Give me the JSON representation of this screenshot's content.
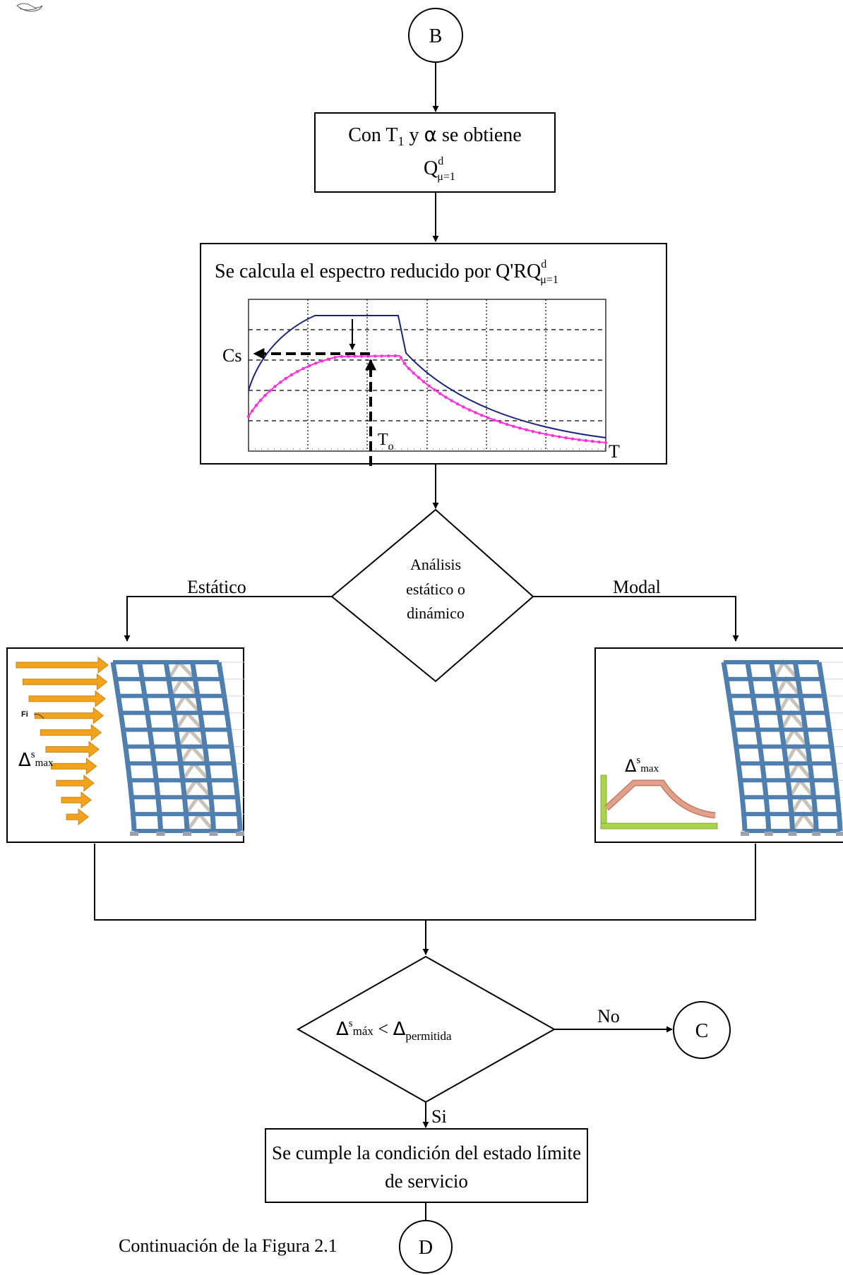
{
  "connectors": {
    "B": "B",
    "C": "C",
    "D": "D"
  },
  "step1": {
    "line1_prefix": "Con T",
    "line1_sub": "1",
    "line1_mid": " y ",
    "line1_alpha": "α",
    "line1_suffix": " se obtiene",
    "q_main": "Q",
    "q_sup": "d",
    "q_sub": "μ=1"
  },
  "step2": {
    "title": "Se calcula el espectro reducido por ",
    "q_prefix": "Q'RQ",
    "q_sup": "d",
    "q_sub": "μ=1"
  },
  "spectrum": {
    "cs_label": "Cs",
    "t0_main": "T",
    "t0_sub": "o",
    "t_label": "T",
    "colors": {
      "elastic": "#1a237e",
      "reduced": "#ff2fdc"
    }
  },
  "decision1": {
    "line1": "Análisis",
    "line2": "estático o",
    "line3": "dinámico",
    "left_label": "Estático",
    "right_label": "Modal"
  },
  "static_panel": {
    "force_label": "Fi",
    "delta_main": "Δ",
    "delta_sup": "s",
    "delta_sub": "max"
  },
  "modal_panel": {
    "delta_main": "Δ",
    "delta_sup": "s",
    "delta_sub": "max"
  },
  "decision2": {
    "delta_main": "Δ",
    "delta_sup": "s",
    "delta_sub": "máx",
    "lt": " < ",
    "perm_main": "Δ",
    "perm_sub": "permitida",
    "no_label": "No",
    "si_label": "Si"
  },
  "final_box": {
    "line1": "Se cumple la condición del estado límite",
    "line2": "de servicio"
  },
  "caption": "Continuación de la Figura 2.1",
  "colors": {
    "frame": "#4f7fae",
    "brace": "#c9c2b8",
    "arrow": "#f2a31b",
    "ground": "#a9d34a",
    "modal_curve": "#e0a089"
  }
}
